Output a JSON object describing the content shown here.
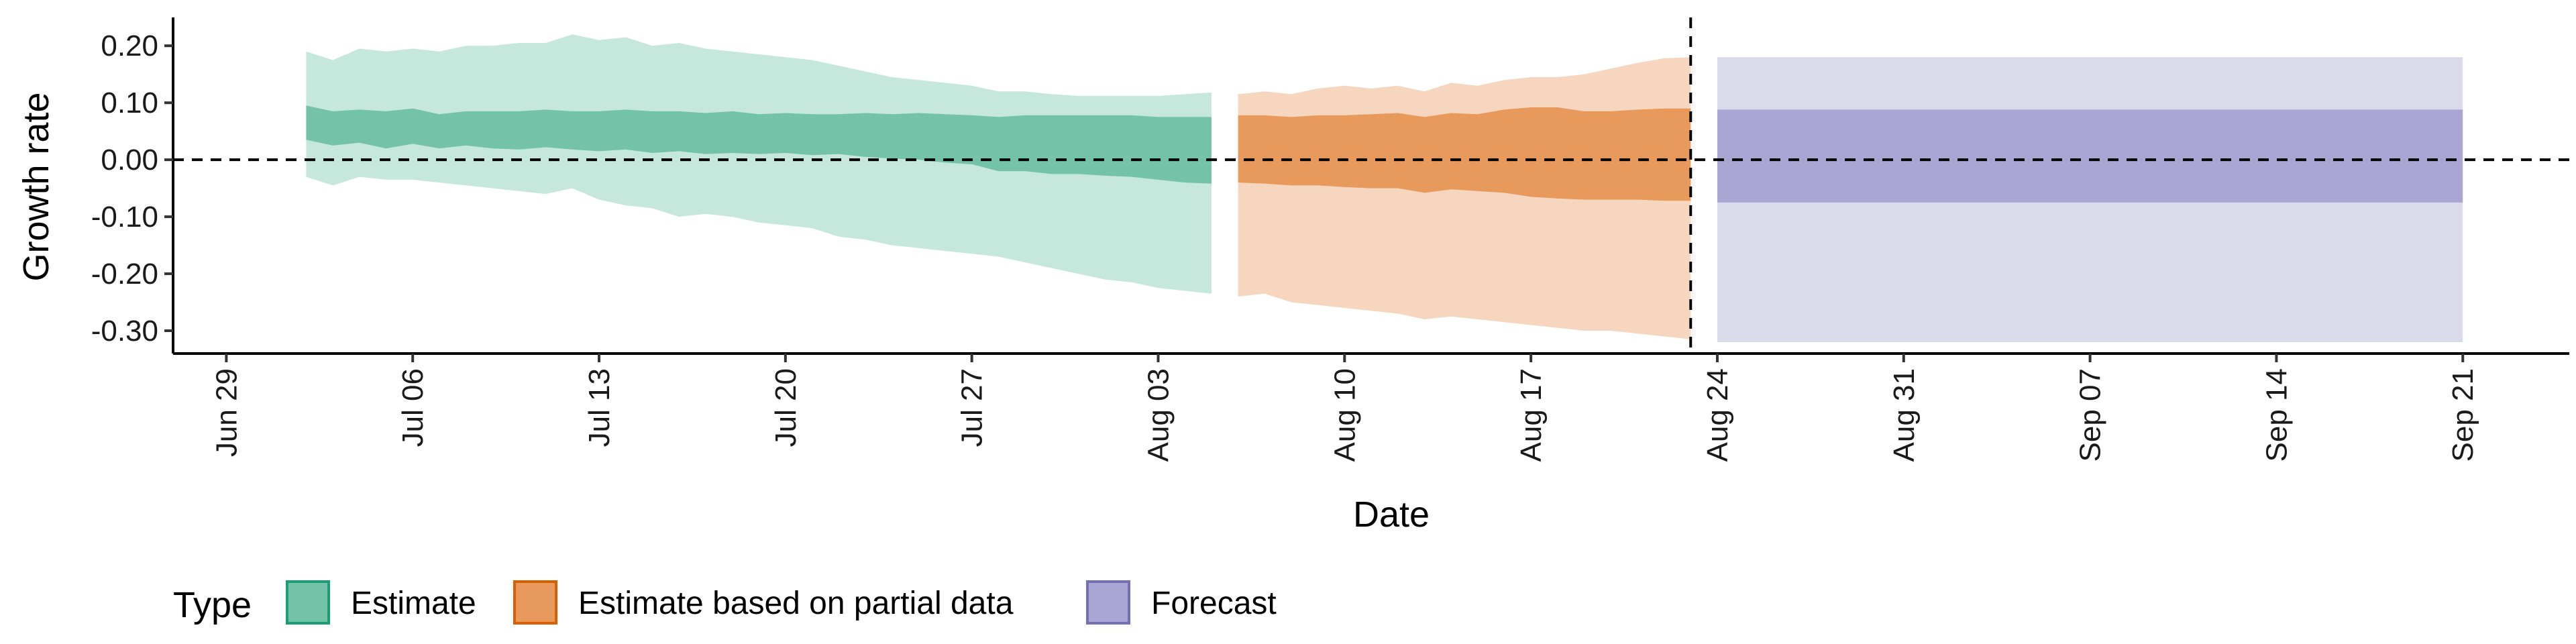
{
  "chart_data": {
    "type": "area",
    "xlabel": "Date",
    "ylabel": "Growth rate",
    "x_axis": {
      "type": "date",
      "range": [
        "2020-06-27",
        "2020-09-25"
      ],
      "ticks": [
        {
          "date": "2020-06-29",
          "label": "Jun 29"
        },
        {
          "date": "2020-07-06",
          "label": "Jul 06"
        },
        {
          "date": "2020-07-13",
          "label": "Jul 13"
        },
        {
          "date": "2020-07-20",
          "label": "Jul 20"
        },
        {
          "date": "2020-07-27",
          "label": "Jul 27"
        },
        {
          "date": "2020-08-03",
          "label": "Aug 03"
        },
        {
          "date": "2020-08-10",
          "label": "Aug 10"
        },
        {
          "date": "2020-08-17",
          "label": "Aug 17"
        },
        {
          "date": "2020-08-24",
          "label": "Aug 24"
        },
        {
          "date": "2020-08-31",
          "label": "Aug 31"
        },
        {
          "date": "2020-09-07",
          "label": "Sep 07"
        },
        {
          "date": "2020-09-14",
          "label": "Sep 14"
        },
        {
          "date": "2020-09-21",
          "label": "Sep 21"
        }
      ]
    },
    "y_axis": {
      "range": [
        -0.34,
        0.245
      ],
      "ticks": [
        {
          "value": 0.2,
          "label": "0.20"
        },
        {
          "value": 0.1,
          "label": "0.10"
        },
        {
          "value": 0.0,
          "label": "0.00"
        },
        {
          "value": -0.1,
          "label": "-0.10"
        },
        {
          "value": -0.2,
          "label": "-0.20"
        },
        {
          "value": -0.3,
          "label": "-0.30"
        }
      ]
    },
    "reference_lines": [
      {
        "orientation": "horizontal",
        "value": 0.0,
        "style": "dashed"
      },
      {
        "orientation": "vertical",
        "date": "2020-08-23",
        "style": "dashed"
      }
    ],
    "legend": {
      "title": "Type",
      "position": "bottom",
      "entries": [
        {
          "label": "Estimate",
          "fill": "#74c3a8",
          "border": "#1b9e77"
        },
        {
          "label": "Estimate based on partial data",
          "fill": "#e89a5c",
          "border": "#d95f02"
        },
        {
          "label": "Forecast",
          "fill": "#a9a6d3",
          "border": "#7570b3"
        }
      ]
    },
    "series": [
      {
        "name": "Estimate",
        "outer_color": "#c5e7dc",
        "inner_color": "#74c3a8",
        "points": [
          {
            "date": "2020-07-02",
            "lower90": -0.03,
            "lower50": 0.035,
            "upper50": 0.095,
            "upper90": 0.19
          },
          {
            "date": "2020-07-03",
            "lower90": -0.045,
            "lower50": 0.025,
            "upper50": 0.085,
            "upper90": 0.175
          },
          {
            "date": "2020-07-04",
            "lower90": -0.03,
            "lower50": 0.03,
            "upper50": 0.088,
            "upper90": 0.195
          },
          {
            "date": "2020-07-05",
            "lower90": -0.035,
            "lower50": 0.02,
            "upper50": 0.085,
            "upper90": 0.19
          },
          {
            "date": "2020-07-06",
            "lower90": -0.035,
            "lower50": 0.028,
            "upper50": 0.09,
            "upper90": 0.195
          },
          {
            "date": "2020-07-07",
            "lower90": -0.04,
            "lower50": 0.02,
            "upper50": 0.08,
            "upper90": 0.19
          },
          {
            "date": "2020-07-08",
            "lower90": -0.045,
            "lower50": 0.025,
            "upper50": 0.085,
            "upper90": 0.2
          },
          {
            "date": "2020-07-09",
            "lower90": -0.05,
            "lower50": 0.02,
            "upper50": 0.085,
            "upper90": 0.2
          },
          {
            "date": "2020-07-10",
            "lower90": -0.055,
            "lower50": 0.018,
            "upper50": 0.085,
            "upper90": 0.205
          },
          {
            "date": "2020-07-11",
            "lower90": -0.06,
            "lower50": 0.022,
            "upper50": 0.088,
            "upper90": 0.205
          },
          {
            "date": "2020-07-12",
            "lower90": -0.05,
            "lower50": 0.018,
            "upper50": 0.085,
            "upper90": 0.22
          },
          {
            "date": "2020-07-13",
            "lower90": -0.07,
            "lower50": 0.015,
            "upper50": 0.085,
            "upper90": 0.21
          },
          {
            "date": "2020-07-14",
            "lower90": -0.08,
            "lower50": 0.018,
            "upper50": 0.088,
            "upper90": 0.215
          },
          {
            "date": "2020-07-15",
            "lower90": -0.085,
            "lower50": 0.012,
            "upper50": 0.085,
            "upper90": 0.2
          },
          {
            "date": "2020-07-16",
            "lower90": -0.1,
            "lower50": 0.015,
            "upper50": 0.085,
            "upper90": 0.205
          },
          {
            "date": "2020-07-17",
            "lower90": -0.095,
            "lower50": 0.01,
            "upper50": 0.082,
            "upper90": 0.195
          },
          {
            "date": "2020-07-18",
            "lower90": -0.1,
            "lower50": 0.012,
            "upper50": 0.085,
            "upper90": 0.19
          },
          {
            "date": "2020-07-19",
            "lower90": -0.11,
            "lower50": 0.01,
            "upper50": 0.08,
            "upper90": 0.185
          },
          {
            "date": "2020-07-20",
            "lower90": -0.115,
            "lower50": 0.012,
            "upper50": 0.082,
            "upper90": 0.18
          },
          {
            "date": "2020-07-21",
            "lower90": -0.12,
            "lower50": 0.008,
            "upper50": 0.08,
            "upper90": 0.175
          },
          {
            "date": "2020-07-22",
            "lower90": -0.135,
            "lower50": 0.01,
            "upper50": 0.08,
            "upper90": 0.165
          },
          {
            "date": "2020-07-23",
            "lower90": -0.14,
            "lower50": 0.005,
            "upper50": 0.082,
            "upper90": 0.155
          },
          {
            "date": "2020-07-24",
            "lower90": -0.15,
            "lower50": 0.002,
            "upper50": 0.08,
            "upper90": 0.145
          },
          {
            "date": "2020-07-25",
            "lower90": -0.155,
            "lower50": 0.0,
            "upper50": 0.082,
            "upper90": 0.14
          },
          {
            "date": "2020-07-26",
            "lower90": -0.16,
            "lower50": -0.005,
            "upper50": 0.08,
            "upper90": 0.135
          },
          {
            "date": "2020-07-27",
            "lower90": -0.165,
            "lower50": -0.008,
            "upper50": 0.078,
            "upper90": 0.13
          },
          {
            "date": "2020-07-28",
            "lower90": -0.17,
            "lower50": -0.02,
            "upper50": 0.075,
            "upper90": 0.12
          },
          {
            "date": "2020-07-29",
            "lower90": -0.18,
            "lower50": -0.02,
            "upper50": 0.078,
            "upper90": 0.12
          },
          {
            "date": "2020-07-30",
            "lower90": -0.19,
            "lower50": -0.025,
            "upper50": 0.078,
            "upper90": 0.115
          },
          {
            "date": "2020-07-31",
            "lower90": -0.2,
            "lower50": -0.025,
            "upper50": 0.078,
            "upper90": 0.112
          },
          {
            "date": "2020-08-01",
            "lower90": -0.21,
            "lower50": -0.028,
            "upper50": 0.078,
            "upper90": 0.112
          },
          {
            "date": "2020-08-02",
            "lower90": -0.215,
            "lower50": -0.03,
            "upper50": 0.078,
            "upper90": 0.112
          },
          {
            "date": "2020-08-03",
            "lower90": -0.225,
            "lower50": -0.035,
            "upper50": 0.075,
            "upper90": 0.112
          },
          {
            "date": "2020-08-04",
            "lower90": -0.23,
            "lower50": -0.04,
            "upper50": 0.075,
            "upper90": 0.115
          },
          {
            "date": "2020-08-05",
            "lower90": -0.235,
            "lower50": -0.042,
            "upper50": 0.075,
            "upper90": 0.118
          }
        ]
      },
      {
        "name": "Estimate based on partial data",
        "outer_color": "#f6d6be",
        "inner_color": "#e89a5c",
        "points": [
          {
            "date": "2020-08-06",
            "lower90": -0.24,
            "lower50": -0.04,
            "upper50": 0.078,
            "upper90": 0.115
          },
          {
            "date": "2020-08-07",
            "lower90": -0.235,
            "lower50": -0.042,
            "upper50": 0.078,
            "upper90": 0.12
          },
          {
            "date": "2020-08-08",
            "lower90": -0.25,
            "lower50": -0.045,
            "upper50": 0.075,
            "upper90": 0.115
          },
          {
            "date": "2020-08-09",
            "lower90": -0.255,
            "lower50": -0.045,
            "upper50": 0.078,
            "upper90": 0.125
          },
          {
            "date": "2020-08-10",
            "lower90": -0.26,
            "lower50": -0.048,
            "upper50": 0.078,
            "upper90": 0.13
          },
          {
            "date": "2020-08-11",
            "lower90": -0.265,
            "lower50": -0.05,
            "upper50": 0.08,
            "upper90": 0.125
          },
          {
            "date": "2020-08-12",
            "lower90": -0.27,
            "lower50": -0.05,
            "upper50": 0.082,
            "upper90": 0.13
          },
          {
            "date": "2020-08-13",
            "lower90": -0.28,
            "lower50": -0.058,
            "upper50": 0.075,
            "upper90": 0.12
          },
          {
            "date": "2020-08-14",
            "lower90": -0.275,
            "lower50": -0.052,
            "upper50": 0.082,
            "upper90": 0.135
          },
          {
            "date": "2020-08-15",
            "lower90": -0.28,
            "lower50": -0.055,
            "upper50": 0.08,
            "upper90": 0.13
          },
          {
            "date": "2020-08-16",
            "lower90": -0.285,
            "lower50": -0.058,
            "upper50": 0.088,
            "upper90": 0.14
          },
          {
            "date": "2020-08-17",
            "lower90": -0.29,
            "lower50": -0.065,
            "upper50": 0.092,
            "upper90": 0.145
          },
          {
            "date": "2020-08-18",
            "lower90": -0.295,
            "lower50": -0.068,
            "upper50": 0.092,
            "upper90": 0.145
          },
          {
            "date": "2020-08-19",
            "lower90": -0.3,
            "lower50": -0.07,
            "upper50": 0.085,
            "upper90": 0.15
          },
          {
            "date": "2020-08-20",
            "lower90": -0.3,
            "lower50": -0.07,
            "upper50": 0.085,
            "upper90": 0.16
          },
          {
            "date": "2020-08-21",
            "lower90": -0.305,
            "lower50": -0.07,
            "upper50": 0.088,
            "upper90": 0.17
          },
          {
            "date": "2020-08-22",
            "lower90": -0.31,
            "lower50": -0.072,
            "upper50": 0.09,
            "upper90": 0.178
          },
          {
            "date": "2020-08-23",
            "lower90": -0.315,
            "lower50": -0.072,
            "upper50": 0.09,
            "upper90": 0.18
          }
        ]
      },
      {
        "name": "Forecast",
        "outer_color": "#dbdaea",
        "inner_color": "#a9a6d3",
        "points": [
          {
            "date": "2020-08-24",
            "lower90": -0.32,
            "lower50": -0.075,
            "upper50": 0.088,
            "upper90": 0.18
          },
          {
            "date": "2020-09-21",
            "lower90": -0.32,
            "lower50": -0.075,
            "upper50": 0.088,
            "upper90": 0.18
          }
        ]
      }
    ]
  }
}
